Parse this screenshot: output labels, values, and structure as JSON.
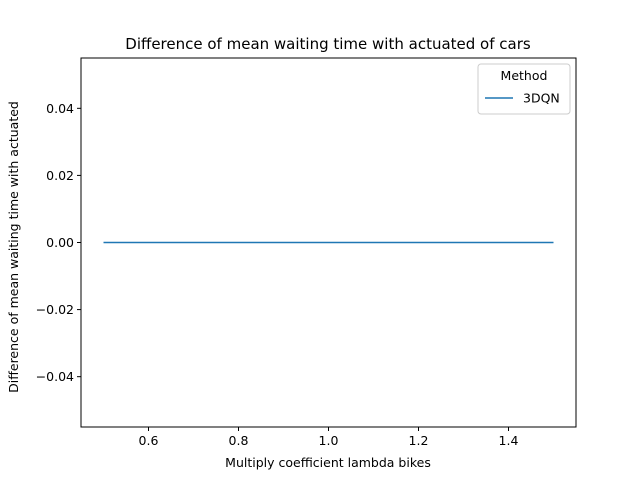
{
  "chart_data": {
    "type": "line",
    "title": "Difference of mean waiting time with actuated of cars",
    "xlabel": "Multiply coefficient lambda bikes",
    "ylabel": "Difference of mean waiting time with actuated",
    "xlim": [
      0.45,
      1.55
    ],
    "ylim": [
      -0.055,
      0.055
    ],
    "x_ticks": [
      0.6,
      0.8,
      1.0,
      1.2,
      1.4
    ],
    "x_tick_labels": [
      "0.6",
      "0.8",
      "1.0",
      "1.2",
      "1.4"
    ],
    "y_ticks": [
      -0.04,
      -0.02,
      0.0,
      0.02,
      0.04
    ],
    "y_tick_labels": [
      "−0.04",
      "−0.02",
      "0.00",
      "0.02",
      "0.04"
    ],
    "grid": false,
    "legend": {
      "title": "Method",
      "placement": "top-right"
    },
    "series": [
      {
        "name": "3DQN",
        "color": "#1f77b4",
        "x": [
          0.5,
          1.5
        ],
        "y": [
          0.0,
          0.0
        ]
      }
    ]
  }
}
